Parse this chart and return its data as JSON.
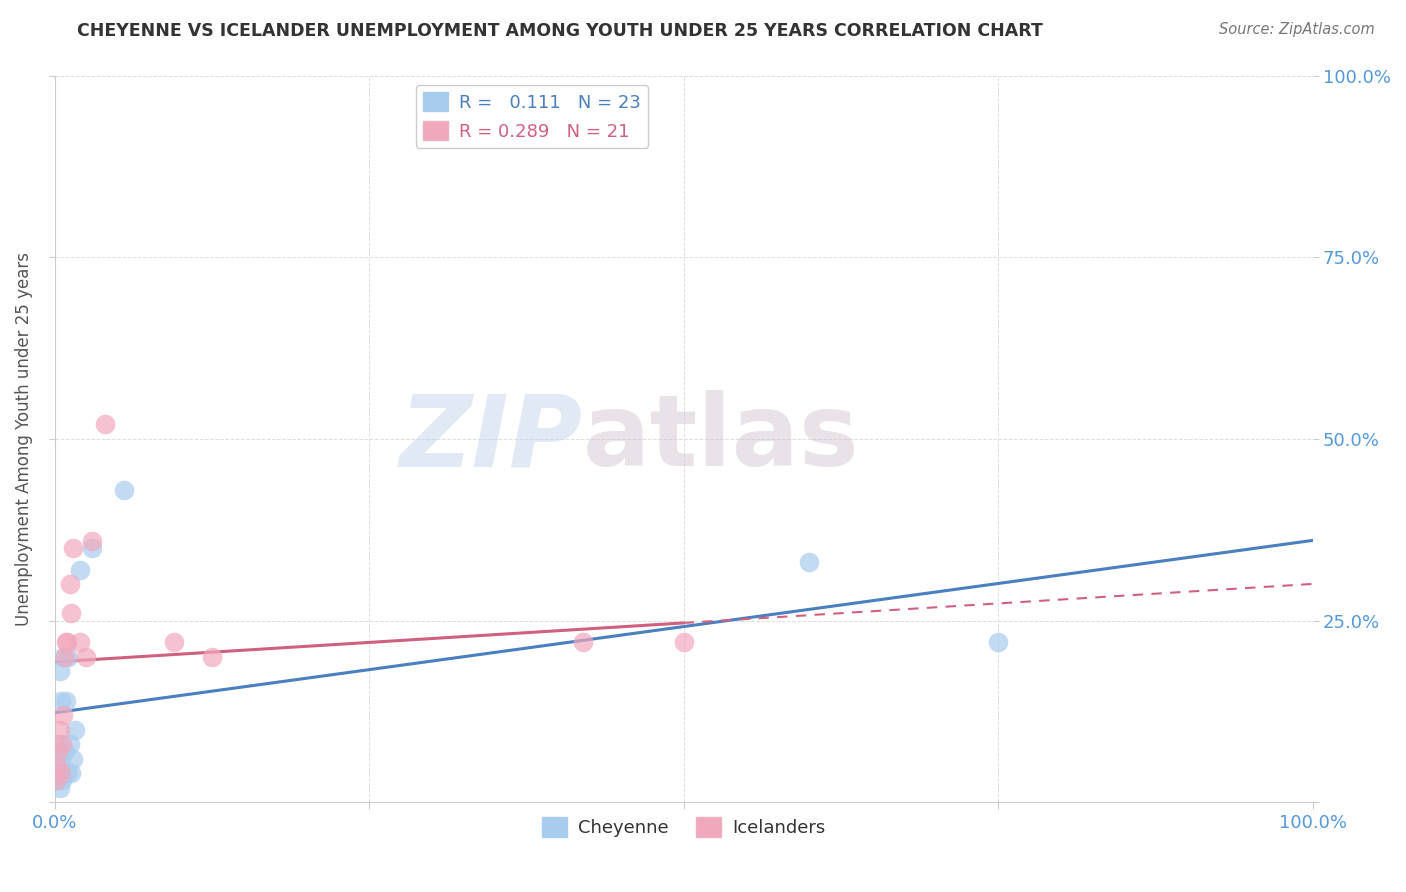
{
  "title": "CHEYENNE VS ICELANDER UNEMPLOYMENT AMONG YOUTH UNDER 25 YEARS CORRELATION CHART",
  "source": "Source: ZipAtlas.com",
  "ylabel": "Unemployment Among Youth under 25 years",
  "cheyenne_R": "0.111",
  "cheyenne_N": "23",
  "icelander_R": "0.289",
  "icelander_N": "21",
  "cheyenne_color": "#A8CCEE",
  "icelander_color": "#F0A8BC",
  "cheyenne_line_color": "#4A7FC0",
  "icelander_line_color": "#D06080",
  "watermark_zip": "ZIP",
  "watermark_atlas": "atlas",
  "cheyenne_x": [
    0.001,
    0.002,
    0.003,
    0.003,
    0.004,
    0.004,
    0.005,
    0.005,
    0.006,
    0.007,
    0.008,
    0.009,
    0.01,
    0.011,
    0.012,
    0.013,
    0.015,
    0.016,
    0.02,
    0.03,
    0.055,
    0.6,
    0.75
  ],
  "cheyenne_y": [
    0.03,
    0.05,
    0.04,
    0.08,
    0.02,
    0.18,
    0.06,
    0.14,
    0.03,
    0.2,
    0.07,
    0.14,
    0.04,
    0.2,
    0.08,
    0.04,
    0.06,
    0.1,
    0.32,
    0.35,
    0.43,
    0.33,
    0.22
  ],
  "icelander_x": [
    0.001,
    0.002,
    0.003,
    0.004,
    0.005,
    0.006,
    0.007,
    0.008,
    0.009,
    0.01,
    0.012,
    0.013,
    0.015,
    0.02,
    0.025,
    0.03,
    0.04,
    0.095,
    0.125,
    0.42,
    0.5
  ],
  "icelander_y": [
    0.03,
    0.05,
    0.07,
    0.1,
    0.04,
    0.08,
    0.12,
    0.2,
    0.22,
    0.22,
    0.3,
    0.26,
    0.35,
    0.22,
    0.2,
    0.36,
    0.52,
    0.22,
    0.2,
    0.22,
    0.22
  ],
  "xlim": [
    0,
    1.0
  ],
  "ylim": [
    0,
    1.0
  ],
  "background_color": "#FFFFFF",
  "grid_color": "#DDDDDD",
  "tick_color": "#5599DD",
  "title_color": "#333333",
  "source_color": "#777777",
  "ylabel_color": "#555555"
}
